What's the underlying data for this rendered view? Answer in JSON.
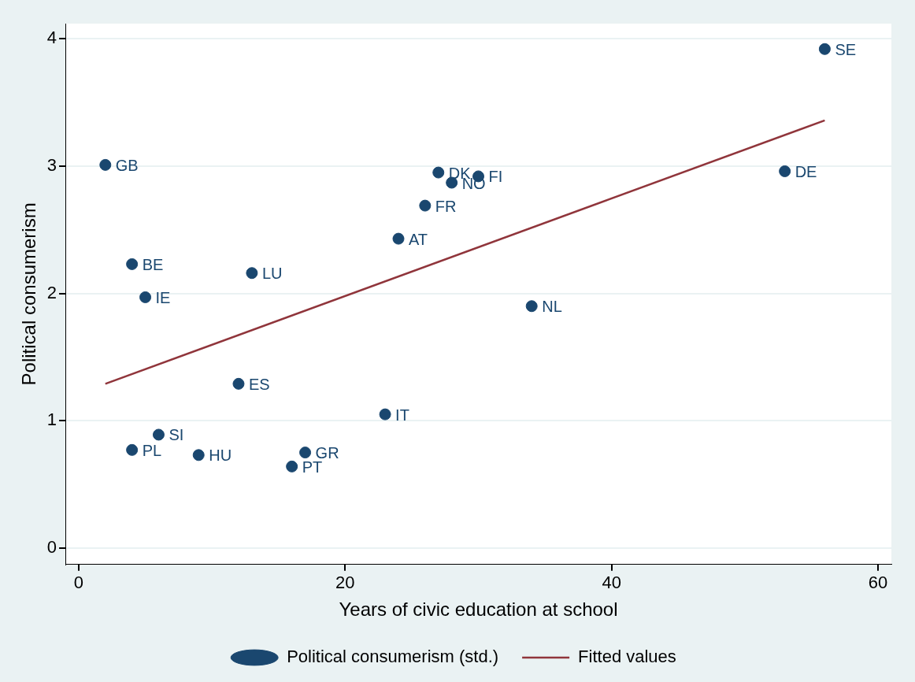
{
  "chart_data": {
    "type": "scatter",
    "xlabel": "Years of civic education at school",
    "ylabel": "Political consumerism",
    "xlim": [
      -1,
      61
    ],
    "ylim": [
      -0.13,
      4.12
    ],
    "xticks": [
      0,
      20,
      40,
      60
    ],
    "yticks": [
      0,
      1,
      2,
      3,
      4
    ],
    "grid": "y",
    "legend": "bottom",
    "marker": "circle",
    "series": [
      {
        "name": "Political consumerism (std.)",
        "color": "#1a476f",
        "x": [
          2,
          4,
          5,
          13,
          12,
          6,
          4,
          9,
          16,
          17,
          23,
          24,
          26,
          27,
          28,
          30,
          34,
          53,
          56
        ],
        "values": [
          3.01,
          2.23,
          1.97,
          2.16,
          1.29,
          0.89,
          0.77,
          0.73,
          0.64,
          0.75,
          1.05,
          2.43,
          2.69,
          2.95,
          2.87,
          2.92,
          1.9,
          2.96,
          3.92
        ]
      },
      {
        "name": "Fitted values",
        "color": "#90353b",
        "type": "line",
        "marker": "none",
        "x": [
          2,
          56
        ],
        "values": [
          1.29,
          3.36
        ]
      }
    ],
    "annotations": [
      {
        "text": "GB",
        "x": 2,
        "y": 3.01
      },
      {
        "text": "BE",
        "x": 4,
        "y": 2.23
      },
      {
        "text": "IE",
        "x": 5,
        "y": 1.97
      },
      {
        "text": "LU",
        "x": 13,
        "y": 2.16
      },
      {
        "text": "ES",
        "x": 12,
        "y": 1.29
      },
      {
        "text": "SI",
        "x": 6,
        "y": 0.89
      },
      {
        "text": "PL",
        "x": 4,
        "y": 0.77
      },
      {
        "text": "HU",
        "x": 9,
        "y": 0.73
      },
      {
        "text": "PT",
        "x": 16,
        "y": 0.64
      },
      {
        "text": "GR",
        "x": 17,
        "y": 0.75
      },
      {
        "text": "IT",
        "x": 23,
        "y": 1.05
      },
      {
        "text": "AT",
        "x": 24,
        "y": 2.43
      },
      {
        "text": "FR",
        "x": 26,
        "y": 2.69
      },
      {
        "text": "DK",
        "x": 27,
        "y": 2.95
      },
      {
        "text": "NO",
        "x": 28,
        "y": 2.87
      },
      {
        "text": "FI",
        "x": 30,
        "y": 2.92
      },
      {
        "text": "NL",
        "x": 34,
        "y": 1.9
      },
      {
        "text": "DE",
        "x": 53,
        "y": 2.96
      },
      {
        "text": "SE",
        "x": 56,
        "y": 3.92
      }
    ]
  }
}
